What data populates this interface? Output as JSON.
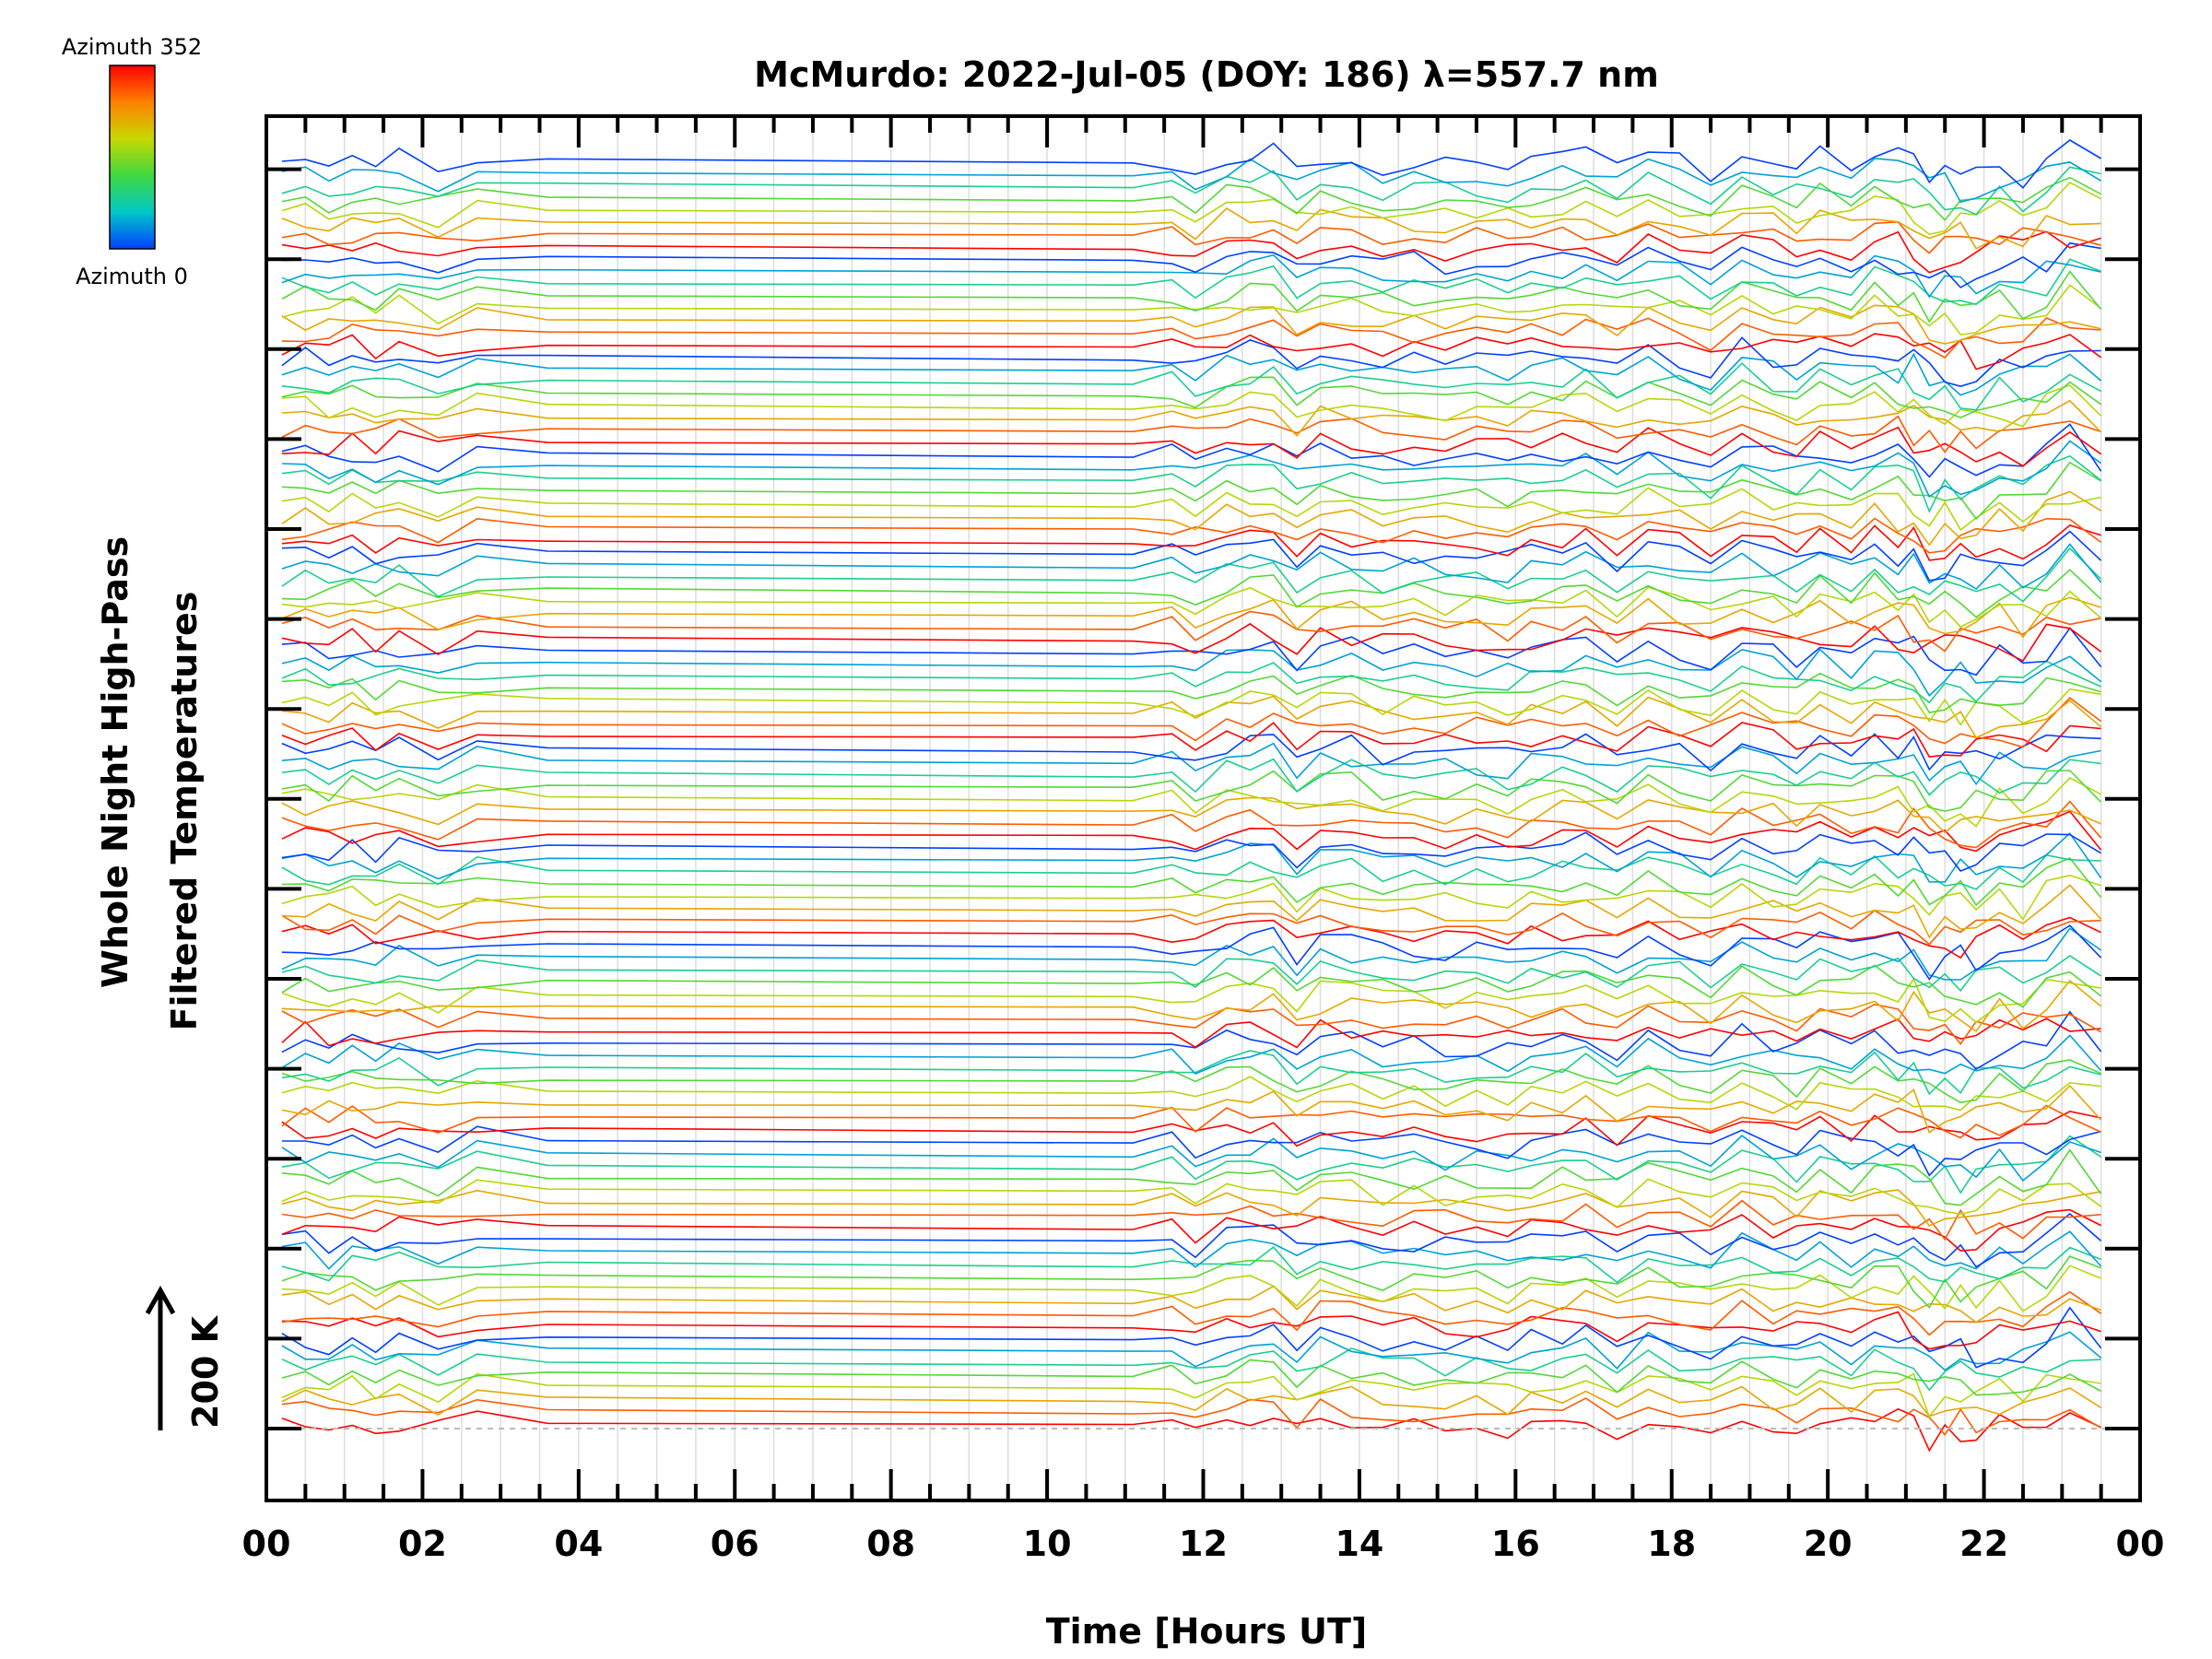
{
  "chart_data": {
    "type": "line",
    "title": "McMurdo: 2022-Jul-05 (DOY: 186) λ=557.7 nm",
    "xlabel": "Time [Hours UT]",
    "ylabel_line1": "Whole Night High-Pass",
    "ylabel_line2": "Filtered Temperatures",
    "scale_label": "200 K",
    "x_ticks": [
      "00",
      "02",
      "04",
      "06",
      "08",
      "10",
      "12",
      "14",
      "16",
      "18",
      "20",
      "22",
      "00"
    ],
    "xlim": [
      0,
      24
    ],
    "colorbar": {
      "top_label": "Azimuth 352",
      "bottom_label": "Azimuth 0",
      "colors": [
        "#ff0000",
        "#ff8000",
        "#c8d800",
        "#40d840",
        "#00c8c8",
        "#0040ff"
      ]
    },
    "azimuth_groups": 13,
    "traces_per_group": 8,
    "sample_times_hours": [
      0.2,
      0.5,
      0.8,
      1.1,
      1.4,
      1.7,
      2.2,
      2.7,
      3.6,
      11.1,
      11.6,
      11.9,
      12.3,
      12.6,
      12.9,
      13.2,
      13.5,
      13.9,
      14.3,
      14.7,
      15.1,
      15.5,
      15.9,
      16.2,
      16.6,
      16.9,
      17.3,
      17.7,
      18.1,
      18.5,
      18.9,
      19.3,
      19.6,
      19.9,
      20.3,
      20.6,
      20.9,
      21.1,
      21.3,
      21.5,
      21.7,
      21.9,
      22.2,
      22.5,
      22.8,
      23.1,
      23.5
    ],
    "baseline_dashed": true
  }
}
